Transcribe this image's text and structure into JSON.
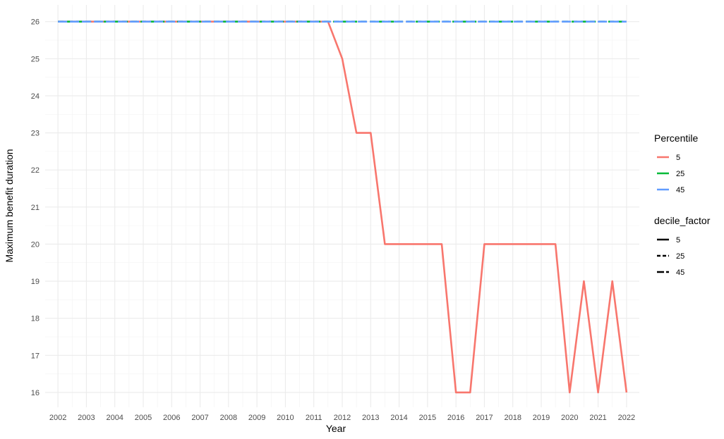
{
  "chart_data": {
    "type": "line",
    "title": "",
    "xlabel": "Year",
    "ylabel": "Maximum benefit duration",
    "xlim": [
      2001.55,
      2022.45
    ],
    "ylim": [
      15.6,
      26.45
    ],
    "x_ticks": [
      2002,
      2003,
      2004,
      2005,
      2006,
      2007,
      2008,
      2009,
      2010,
      2011,
      2012,
      2013,
      2014,
      2015,
      2016,
      2017,
      2018,
      2019,
      2020,
      2021,
      2022
    ],
    "y_ticks": [
      16,
      17,
      18,
      19,
      20,
      21,
      22,
      23,
      24,
      25,
      26
    ],
    "grid": true,
    "theme": "minimal",
    "series": [
      {
        "name": "5",
        "color": "#F8766D",
        "linetype": "solid",
        "points": [
          [
            2002,
            26
          ],
          [
            2002.5,
            26
          ],
          [
            2003,
            26
          ],
          [
            2003.5,
            26
          ],
          [
            2004,
            26
          ],
          [
            2004.5,
            26
          ],
          [
            2005,
            26
          ],
          [
            2005.5,
            26
          ],
          [
            2006,
            26
          ],
          [
            2006.5,
            26
          ],
          [
            2007,
            26
          ],
          [
            2007.5,
            26
          ],
          [
            2008,
            26
          ],
          [
            2008.5,
            26
          ],
          [
            2009,
            26
          ],
          [
            2009.5,
            26
          ],
          [
            2010,
            26
          ],
          [
            2010.5,
            26
          ],
          [
            2011,
            26
          ],
          [
            2011.5,
            26
          ],
          [
            2012,
            25
          ],
          [
            2012.5,
            23
          ],
          [
            2013,
            23
          ],
          [
            2013.5,
            20
          ],
          [
            2014,
            20
          ],
          [
            2014.5,
            20
          ],
          [
            2015,
            20
          ],
          [
            2015.5,
            20
          ],
          [
            2016,
            16
          ],
          [
            2016.5,
            16
          ],
          [
            2017,
            20
          ],
          [
            2017.5,
            20
          ],
          [
            2018,
            20
          ],
          [
            2018.5,
            20
          ],
          [
            2019,
            20
          ],
          [
            2019.5,
            20
          ],
          [
            2020,
            16
          ],
          [
            2020.5,
            19
          ],
          [
            2021,
            16
          ],
          [
            2021.5,
            19
          ],
          [
            2022,
            16
          ]
        ]
      },
      {
        "name": "25",
        "color": "#00BA38",
        "linetype": "dashed",
        "points": [
          [
            2002,
            26
          ],
          [
            2022,
            26
          ]
        ]
      },
      {
        "name": "45",
        "color": "#619CFF",
        "linetype": "longdash",
        "points": [
          [
            2002,
            26
          ],
          [
            2022,
            26
          ]
        ]
      }
    ],
    "legends": [
      {
        "title": "Percentile",
        "kind": "color",
        "placement": "right",
        "entries": [
          {
            "label": "5",
            "color": "#F8766D"
          },
          {
            "label": "25",
            "color": "#00BA38"
          },
          {
            "label": "45",
            "color": "#619CFF"
          }
        ]
      },
      {
        "title": "decile_factor",
        "kind": "linetype",
        "placement": "right",
        "entries": [
          {
            "label": "5",
            "linetype": "solid"
          },
          {
            "label": "25",
            "linetype": "dashed"
          },
          {
            "label": "45",
            "linetype": "longdash"
          }
        ]
      }
    ]
  }
}
